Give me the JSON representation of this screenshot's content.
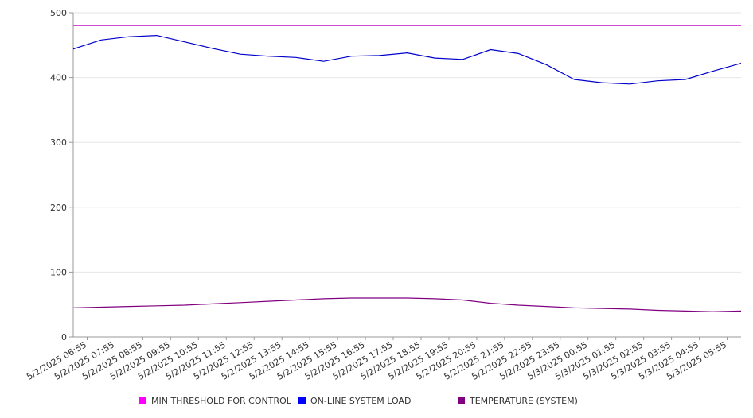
{
  "chart_data": {
    "type": "line",
    "title": "",
    "xlabel": "",
    "ylabel": "",
    "ylim": [
      0,
      500
    ],
    "yticks": [
      0,
      100,
      200,
      300,
      400,
      500
    ],
    "grid": "horizontal",
    "legend_position": "bottom",
    "x_tick_labels": [
      "5/2/2025 06:55",
      "5/2/2025 07:55",
      "5/2/2025 08:55",
      "5/2/2025 09:55",
      "5/2/2025 10:55",
      "5/2/2025 11:55",
      "5/2/2025 12:55",
      "5/2/2025 13:55",
      "5/2/2025 14:55",
      "5/2/2025 15:55",
      "5/2/2025 16:55",
      "5/2/2025 17:55",
      "5/2/2025 18:55",
      "5/2/2025 19:55",
      "5/2/2025 20:55",
      "5/2/2025 21:55",
      "5/2/2025 22:55",
      "5/2/2025 23:55",
      "5/3/2025 00:55",
      "5/3/2025 01:55",
      "5/3/2025 02:55",
      "5/3/2025 03:55",
      "5/3/2025 04:55",
      "5/3/2025 05:55"
    ],
    "series": [
      {
        "name": "MIN THRESHOLD FOR CONTROL",
        "color": "#cc33cc",
        "legend_color": "#ff00ff",
        "values": [
          480,
          480,
          480,
          480,
          480,
          480,
          480,
          480,
          480,
          480,
          480,
          480,
          480,
          480,
          480,
          480,
          480,
          480,
          480,
          480,
          480,
          480,
          480,
          480,
          480
        ]
      },
      {
        "name": "ON-LINE SYSTEM LOAD",
        "color": "#0000cc",
        "legend_color": "#0000ff",
        "values": [
          444,
          458,
          463,
          465,
          455,
          445,
          436,
          433,
          431,
          425,
          433,
          434,
          438,
          430,
          428,
          443,
          437,
          420,
          397,
          392,
          390,
          395,
          397,
          410,
          422
        ]
      },
      {
        "name": "TEMPERATURE (SYSTEM)",
        "color": "#800080",
        "legend_color": "#800080",
        "values": [
          45,
          46,
          47,
          48,
          49,
          51,
          53,
          55,
          57,
          59,
          60,
          60,
          60,
          59,
          57,
          52,
          49,
          47,
          45,
          44,
          43,
          41,
          40,
          39,
          40
        ]
      }
    ]
  }
}
